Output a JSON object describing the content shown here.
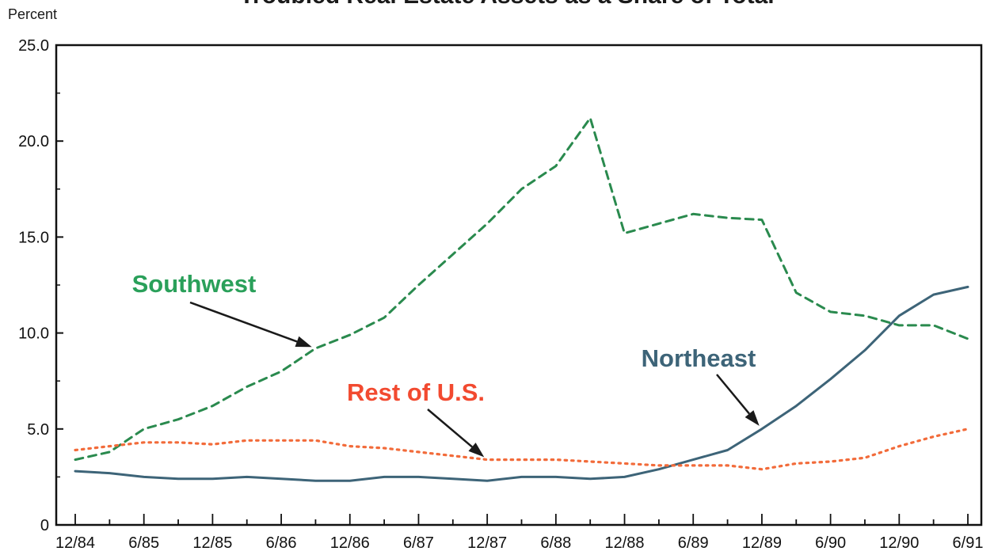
{
  "chart_data": {
    "type": "line",
    "title": "",
    "ylabel": "Percent",
    "xlabel": "",
    "ylim": [
      0,
      25
    ],
    "yticks": [
      {
        "value": 0,
        "label": "0"
      },
      {
        "value": 5,
        "label": "5.0"
      },
      {
        "value": 10,
        "label": "10.0"
      },
      {
        "value": 15,
        "label": "15.0"
      },
      {
        "value": 20,
        "label": "20.0"
      },
      {
        "value": 25,
        "label": "25.0"
      }
    ],
    "categories": [
      "12/84",
      "3/85",
      "6/85",
      "9/85",
      "12/85",
      "3/86",
      "6/86",
      "9/86",
      "12/86",
      "3/87",
      "6/87",
      "9/87",
      "12/87",
      "3/88",
      "6/88",
      "9/88",
      "12/88",
      "3/89",
      "6/89",
      "9/89",
      "12/89",
      "3/90",
      "6/90",
      "9/90",
      "12/90",
      "3/91",
      "6/91"
    ],
    "xtick_labels": [
      "12/84",
      "6/85",
      "12/85",
      "6/86",
      "12/86",
      "6/87",
      "12/87",
      "6/88",
      "12/88",
      "6/89",
      "12/89",
      "6/90",
      "12/90",
      "6/91"
    ],
    "series": [
      {
        "name": "Southwest",
        "style": "dashed",
        "color": "#2a8a4e",
        "values": [
          3.4,
          3.8,
          5.0,
          5.5,
          6.2,
          7.2,
          8.0,
          9.2,
          9.9,
          10.8,
          12.5,
          14.1,
          15.7,
          17.5,
          18.7,
          21.2,
          15.2,
          15.7,
          16.2,
          16.0,
          15.9,
          12.1,
          11.1,
          10.9,
          10.4,
          10.4,
          9.7
        ]
      },
      {
        "name": "Northeast",
        "style": "solid",
        "color": "#3d6478",
        "values": [
          2.8,
          2.7,
          2.5,
          2.4,
          2.4,
          2.5,
          2.4,
          2.3,
          2.3,
          2.5,
          2.5,
          2.4,
          2.3,
          2.5,
          2.5,
          2.4,
          2.5,
          2.9,
          3.4,
          3.9,
          5.0,
          6.2,
          7.6,
          9.1,
          10.9,
          12.0,
          12.4
        ]
      },
      {
        "name": "Rest of U.S.",
        "style": "dotted",
        "color": "#f26b3a",
        "values": [
          3.9,
          4.1,
          4.3,
          4.3,
          4.2,
          4.4,
          4.4,
          4.4,
          4.1,
          4.0,
          3.8,
          3.6,
          3.4,
          3.4,
          3.4,
          3.3,
          3.2,
          3.1,
          3.1,
          3.1,
          2.9,
          3.2,
          3.3,
          3.5,
          4.1,
          4.6,
          5.0
        ]
      }
    ],
    "annotations": [
      {
        "text": "Southwest",
        "series": "Southwest",
        "color": "#2aa05a",
        "point_index": 7
      },
      {
        "text": "Northeast",
        "series": "Northeast",
        "color": "#3d6478",
        "point_index": 20
      },
      {
        "text": "Rest of U.S.",
        "series": "Rest of U.S.",
        "color": "#f24a30",
        "point_index": 12
      }
    ],
    "grid": false,
    "legend": "none"
  }
}
